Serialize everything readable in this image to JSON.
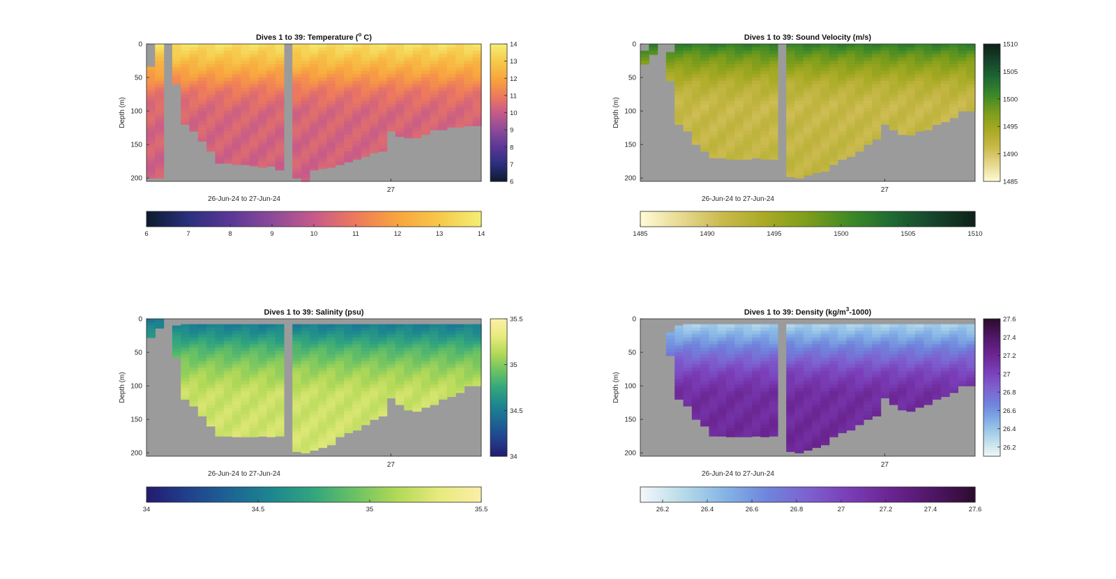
{
  "figure": {
    "background": "#ffffff",
    "axes_background": "#9b9b9b"
  },
  "chart_data": [
    {
      "type": "heatmap",
      "title": "Dives 1 to 39: Temperature (",
      "title_sup": "o",
      "title_end": " C)",
      "ylabel": "Depth (m)",
      "xlabel": "26-Jun-24 to 27-Jun-24",
      "xtick_labels": [
        "27"
      ],
      "ylim": [
        0,
        205
      ],
      "yticks": [
        0,
        50,
        100,
        150,
        200
      ],
      "grid": false,
      "clim": [
        6,
        14
      ],
      "colorbar_ticks": [
        6,
        7,
        8,
        9,
        10,
        11,
        12,
        13,
        14
      ],
      "colormap": [
        "#0b1a2e",
        "#2b2f7d",
        "#5a3796",
        "#8c4a99",
        "#c65a8a",
        "#ee7a5c",
        "#f8a53f",
        "#f6c94a",
        "#f4ef76"
      ],
      "columns": 39,
      "gap_columns": [
        2,
        16
      ],
      "surface": [
        34,
        0,
        0,
        0,
        0,
        0,
        0,
        0,
        0,
        0,
        0,
        0,
        0,
        0,
        0,
        0,
        0,
        0,
        0,
        0,
        0,
        0,
        0,
        0,
        0,
        0,
        0,
        0,
        0,
        0,
        0,
        0,
        0,
        0,
        0,
        0,
        0,
        0,
        0
      ],
      "max_depth": [
        200,
        200,
        0,
        60,
        120,
        130,
        145,
        160,
        178,
        178,
        180,
        180,
        182,
        184,
        182,
        188,
        0,
        200,
        205,
        188,
        186,
        184,
        180,
        176,
        172,
        168,
        162,
        160,
        130,
        138,
        140,
        140,
        135,
        128,
        128,
        124,
        124,
        122,
        122
      ],
      "profile": {
        "depths": [
          0,
          20,
          45,
          70,
          100,
          205
        ],
        "values": [
          13.6,
          12.9,
          11.9,
          10.9,
          10.4,
          10.2
        ]
      }
    },
    {
      "type": "heatmap",
      "title": "Dives 1 to 39: Sound Velocity (m/s)",
      "ylabel": "Depth (m)",
      "xlabel": "26-Jun-24 to 27-Jun-24",
      "xtick_labels": [
        "27"
      ],
      "ylim": [
        0,
        205
      ],
      "yticks": [
        0,
        50,
        100,
        150,
        200
      ],
      "grid": false,
      "clim": [
        1485,
        1510
      ],
      "colorbar_ticks": [
        1485,
        1490,
        1495,
        1500,
        1505,
        1510
      ],
      "colormap": [
        "#fffbd6",
        "#e6d88f",
        "#c9b94b",
        "#a8aa24",
        "#7d9d1b",
        "#3f8a26",
        "#1f6b33",
        "#16452b",
        "#0f2219"
      ],
      "columns": 39,
      "gap_columns": [
        2,
        16
      ],
      "surface": [
        10,
        0,
        0,
        12,
        0,
        0,
        0,
        0,
        0,
        0,
        0,
        0,
        0,
        0,
        0,
        0,
        0,
        0,
        0,
        0,
        0,
        0,
        0,
        0,
        0,
        0,
        0,
        0,
        0,
        0,
        0,
        0,
        0,
        0,
        0,
        0,
        0,
        0,
        0
      ],
      "max_depth": [
        30,
        16,
        0,
        55,
        120,
        130,
        150,
        160,
        170,
        170,
        172,
        172,
        172,
        170,
        172,
        172,
        0,
        198,
        200,
        196,
        192,
        190,
        180,
        172,
        168,
        160,
        150,
        142,
        120,
        128,
        135,
        136,
        130,
        128,
        120,
        116,
        110,
        100,
        100
      ],
      "profile": {
        "depths": [
          0,
          15,
          35,
          60,
          90,
          205
        ],
        "values": [
          1502,
          1499,
          1496,
          1493,
          1491.5,
          1492
        ]
      }
    },
    {
      "type": "heatmap",
      "title": "Dives 1 to 39: Salinity (psu)",
      "ylabel": "Depth (m)",
      "xlabel": "26-Jun-24 to 27-Jun-24",
      "xtick_labels": [
        "27"
      ],
      "ylim": [
        0,
        205
      ],
      "yticks": [
        0,
        50,
        100,
        150,
        200
      ],
      "grid": false,
      "clim": [
        34,
        35.5
      ],
      "colorbar_ticks": [
        34,
        34.5,
        35,
        35.5
      ],
      "colormap": [
        "#231a6e",
        "#21408e",
        "#1d6494",
        "#1d8690",
        "#33a67d",
        "#6cc263",
        "#b3d957",
        "#e7ea7d",
        "#fbeea8"
      ],
      "columns": 39,
      "gap_columns": [
        16
      ],
      "surface": [
        0,
        0,
        10,
        10,
        8,
        8,
        8,
        8,
        8,
        8,
        8,
        8,
        8,
        8,
        8,
        8,
        0,
        8,
        8,
        8,
        8,
        8,
        8,
        8,
        8,
        8,
        8,
        8,
        8,
        8,
        8,
        8,
        8,
        8,
        8,
        8,
        8,
        8,
        8
      ],
      "max_depth": [
        28,
        14,
        0,
        58,
        120,
        130,
        145,
        160,
        175,
        175,
        176,
        176,
        176,
        175,
        176,
        175,
        0,
        198,
        200,
        196,
        192,
        188,
        176,
        170,
        166,
        158,
        150,
        145,
        118,
        128,
        136,
        138,
        132,
        128,
        120,
        116,
        110,
        100,
        100
      ],
      "profile": {
        "depths": [
          0,
          20,
          45,
          75,
          110,
          205
        ],
        "values": [
          34.45,
          34.6,
          34.85,
          35.05,
          35.2,
          35.25
        ]
      }
    },
    {
      "type": "heatmap",
      "title": "Dives 1 to 39: Density (kg/m",
      "title_sup": "3",
      "title_end": "-1000)",
      "ylabel": "Depth (m)",
      "xlabel": "26-Jun-24 to 27-Jun-24",
      "xtick_labels": [
        "27"
      ],
      "ylim": [
        0,
        205
      ],
      "yticks": [
        0,
        50,
        100,
        150,
        200
      ],
      "grid": false,
      "clim": [
        26.1,
        27.6
      ],
      "colorbar_ticks": [
        26.2,
        26.4,
        26.6,
        26.8,
        27,
        27.2,
        27.4,
        27.6
      ],
      "colorbar_labels": [
        "26.2",
        "26.4",
        "26.6",
        "26.8",
        "27",
        "27.2",
        "27.4",
        "27.6"
      ],
      "colormap": [
        "#f3f8fa",
        "#b9dbe9",
        "#86b5e6",
        "#6f86dc",
        "#7d61d0",
        "#7a3db7",
        "#6a2490",
        "#4f1665",
        "#2c0c2e"
      ],
      "columns": 39,
      "gap_columns": [
        0,
        1,
        2,
        16
      ],
      "surface": [
        0,
        0,
        0,
        20,
        10,
        8,
        8,
        8,
        8,
        8,
        8,
        8,
        8,
        8,
        8,
        8,
        0,
        8,
        8,
        8,
        8,
        8,
        8,
        8,
        8,
        8,
        8,
        8,
        8,
        8,
        8,
        8,
        8,
        8,
        8,
        8,
        8,
        8,
        8
      ],
      "max_depth": [
        0,
        0,
        0,
        55,
        120,
        130,
        150,
        160,
        175,
        175,
        176,
        176,
        176,
        175,
        176,
        175,
        0,
        198,
        200,
        196,
        192,
        188,
        176,
        170,
        166,
        158,
        150,
        145,
        118,
        128,
        136,
        138,
        132,
        128,
        120,
        116,
        110,
        100,
        100
      ],
      "profile": {
        "depths": [
          0,
          20,
          45,
          80,
          110,
          205
        ],
        "values": [
          26.25,
          26.45,
          26.7,
          27.0,
          27.15,
          27.2
        ]
      }
    }
  ]
}
